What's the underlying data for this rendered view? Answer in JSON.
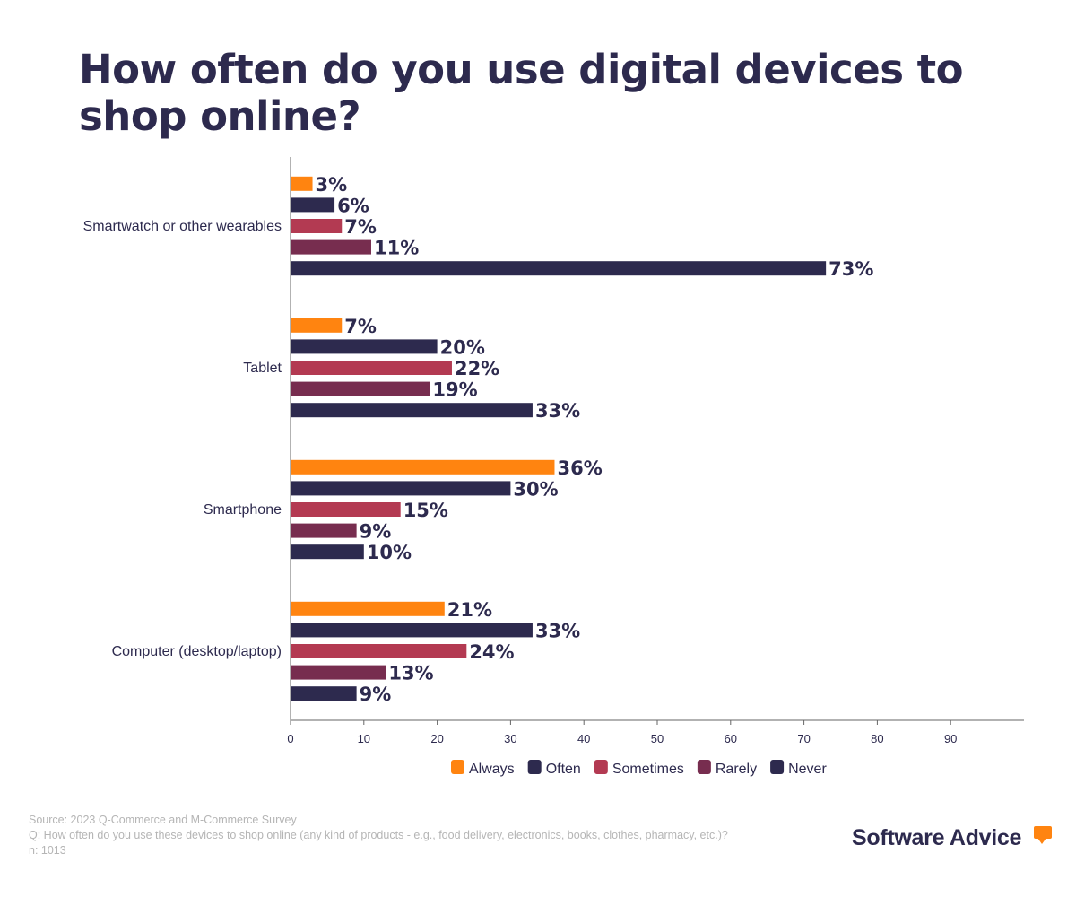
{
  "chart_data": {
    "type": "bar",
    "orientation": "horizontal",
    "title": "How often do you use digital devices to shop online?",
    "categories": [
      "Smartwatch or other wearables",
      "Tablet",
      "Smartphone",
      "Computer (desktop/laptop)"
    ],
    "series": [
      {
        "name": "Always",
        "color": "#ff8410",
        "values": [
          3,
          7,
          36,
          21
        ]
      },
      {
        "name": "Often",
        "color": "#2d2a4e",
        "values": [
          6,
          20,
          30,
          33
        ]
      },
      {
        "name": "Sometimes",
        "color": "#b33a52",
        "values": [
          7,
          22,
          15,
          24
        ]
      },
      {
        "name": "Rarely",
        "color": "#772d4f",
        "values": [
          11,
          19,
          9,
          13
        ]
      },
      {
        "name": "Never",
        "color": "#2d2a4e",
        "values": [
          73,
          33,
          10,
          9
        ]
      }
    ],
    "value_suffix": "%",
    "xlim": [
      0,
      100
    ],
    "xticks": [
      0,
      10,
      20,
      30,
      40,
      50,
      60,
      70,
      80,
      90
    ],
    "grid": false,
    "legend": "bottom"
  },
  "footer": {
    "source": "Source: 2023 Q-Commerce and M-Commerce Survey",
    "question": "Q: How often do you use these devices to shop online (any kind of products - e.g., food delivery, electronics, books, clothes, pharmacy, etc.)?",
    "n": "n: 1013"
  },
  "logo": "Software Advice"
}
